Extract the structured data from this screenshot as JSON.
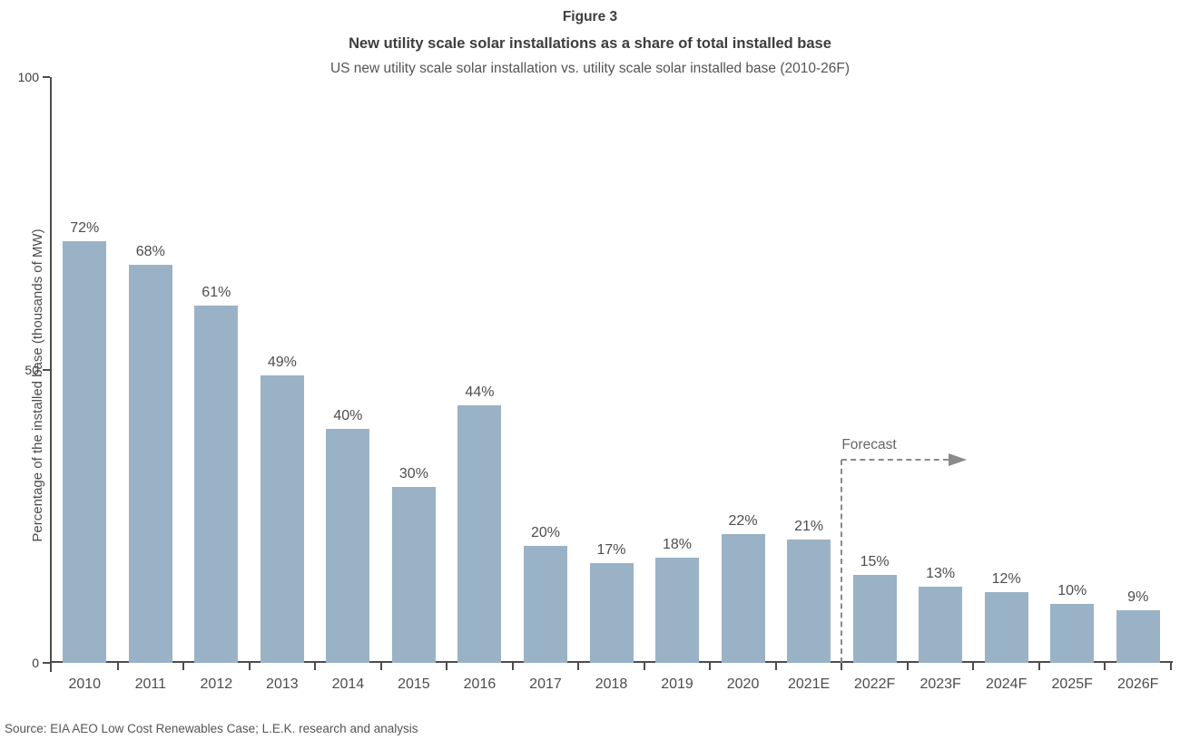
{
  "chart_data": {
    "type": "bar",
    "figure_label": "Figure 3",
    "title": "New utility scale solar installations as a share of total installed base",
    "subtitle": "US new utility scale solar installation vs. utility scale solar installed base (2010-26F)",
    "ylabel": "Percentage of the installed base (thousands of MW)",
    "xlabel": "",
    "ylim": [
      0,
      100
    ],
    "yticks": [
      0,
      50,
      100
    ],
    "grid": false,
    "categories": [
      "2010",
      "2011",
      "2012",
      "2013",
      "2014",
      "2015",
      "2016",
      "2017",
      "2018",
      "2019",
      "2020",
      "2021E",
      "2022F",
      "2023F",
      "2024F",
      "2025F",
      "2026F"
    ],
    "values": [
      72,
      68,
      61,
      49,
      40,
      30,
      44,
      20,
      17,
      18,
      22,
      21,
      15,
      13,
      12,
      10,
      9
    ],
    "value_label_suffix": "%",
    "forecast": {
      "label": "Forecast",
      "starts_after_category": "2021E"
    },
    "colors": {
      "bar": "#9ab2c5",
      "axis": "#4d4d4d",
      "text": "#4d4d4d",
      "forecast_dash": "#8a8a8a"
    },
    "source": "Source: EIA AEO Low Cost Renewables Case; L.E.K. research and analysis"
  }
}
